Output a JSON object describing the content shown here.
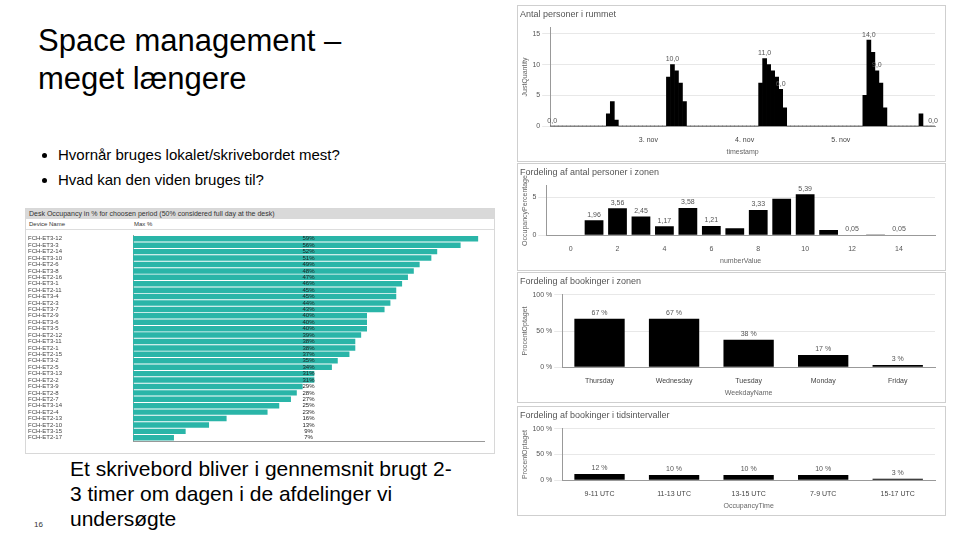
{
  "slide": {
    "title": "Space management – meget længere",
    "bullets": [
      "Hvornår bruges lokalet/skrivebordet mest?",
      "Hvad kan den viden bruges til?"
    ],
    "caption": "Et skrivebord bliver i gennemsnit brugt 2-3 timer om dagen i de afdelinger vi undersøgte",
    "page_number": 16
  },
  "chart_data": [
    {
      "type": "bar",
      "title": "Antal personer i rummet",
      "x_label": "timestamp",
      "y_label": "JustQuantity",
      "categories": [
        null,
        null,
        null,
        null,
        null,
        null,
        null,
        null,
        null,
        null,
        null,
        null,
        null,
        null,
        null,
        null,
        null,
        null,
        null,
        null,
        null,
        null,
        null,
        null,
        "3. nov",
        null,
        null,
        null,
        null,
        null,
        null,
        null,
        null,
        null,
        null,
        null,
        null,
        null,
        null,
        null,
        null,
        null,
        null,
        null,
        null,
        null,
        null,
        null,
        "4. nov",
        null,
        null,
        null,
        null,
        null,
        null,
        null,
        null,
        null,
        null,
        null,
        null,
        null,
        null,
        null,
        null,
        null,
        null,
        null,
        null,
        null,
        null,
        null,
        "5. nov",
        null,
        null,
        null,
        null,
        null,
        null,
        null,
        null,
        null,
        null,
        null,
        null,
        null,
        null,
        null,
        null,
        null,
        null,
        null,
        null,
        null,
        null,
        null
      ],
      "values": [
        0,
        0,
        0,
        0,
        0,
        0,
        0,
        0,
        0,
        0,
        0,
        0,
        0,
        0,
        2,
        4,
        1,
        0,
        0,
        0,
        0,
        0,
        0,
        0,
        0,
        0,
        0,
        0,
        0,
        8,
        10,
        9,
        7,
        4,
        0,
        0,
        0,
        0,
        0,
        0,
        0,
        0,
        0,
        0,
        0,
        0,
        0,
        0,
        0,
        0,
        0,
        0,
        7,
        11,
        10,
        9,
        8,
        6,
        3,
        0,
        0,
        0,
        0,
        0,
        0,
        0,
        0,
        0,
        0,
        0,
        0,
        0,
        0,
        0,
        0,
        0,
        0,
        0,
        5,
        14,
        12,
        9,
        7,
        3,
        0,
        0,
        0,
        0,
        0,
        0,
        0,
        0,
        2,
        0,
        0,
        0
      ],
      "value_labels": [
        "0,0",
        null,
        null,
        null,
        null,
        null,
        null,
        null,
        null,
        null,
        null,
        null,
        null,
        null,
        null,
        null,
        null,
        null,
        null,
        null,
        null,
        null,
        null,
        null,
        null,
        null,
        null,
        null,
        null,
        null,
        "10,0",
        null,
        null,
        null,
        null,
        null,
        null,
        null,
        null,
        null,
        null,
        null,
        null,
        null,
        null,
        null,
        null,
        null,
        null,
        null,
        null,
        null,
        null,
        "11,0",
        null,
        null,
        null,
        "6,0",
        null,
        null,
        null,
        null,
        null,
        null,
        null,
        null,
        null,
        null,
        null,
        null,
        null,
        null,
        null,
        null,
        null,
        null,
        null,
        null,
        null,
        "14,0",
        null,
        "9,0",
        null,
        null,
        null,
        null,
        null,
        null,
        null,
        null,
        null,
        null,
        null,
        null,
        null,
        "0,0"
      ],
      "data_labels": true,
      "color": "#000000",
      "ylim": [
        0,
        16
      ],
      "yticks": [
        0,
        5,
        10,
        15
      ],
      "grid": true
    },
    {
      "type": "bar",
      "title": "Fordeling af antal personer i zonen",
      "x_label": "numberValue",
      "y_label": "OccupancyPercentage",
      "x": [
        1,
        2,
        3,
        4,
        5,
        6,
        7,
        8,
        9,
        10,
        11,
        12,
        13,
        14
      ],
      "values": [
        1.96,
        3.56,
        2.45,
        1.17,
        3.58,
        1.21,
        0.9,
        3.33,
        4.8,
        5.39,
        0.7,
        0.05,
        0.03,
        0.05
      ],
      "value_labels": [
        "1,96",
        "3,56",
        "2,45",
        "1,17",
        "3,58",
        "1,21",
        null,
        "3,33",
        null,
        "5,39",
        null,
        "0,05",
        null,
        "0,05"
      ],
      "data_labels": true,
      "color": "#000000",
      "xlim": [
        0,
        14.5
      ],
      "xticks": [
        0,
        2,
        4,
        6,
        8,
        10,
        12,
        14
      ],
      "ylim": [
        0,
        6.5
      ],
      "yticks": [
        0,
        5
      ],
      "grid": true
    },
    {
      "type": "bar",
      "title": "Fordeling af bookinger i zonen",
      "x_label": "WeekdayName",
      "y_label": "ProcentOptaget",
      "categories": [
        "Thursday",
        "Wednesday",
        "Tuesday",
        "Monday",
        "Friday"
      ],
      "values": [
        67,
        67,
        38,
        17,
        3
      ],
      "value_labels": [
        "67 %",
        "67 %",
        "38 %",
        "17 %",
        "3 %"
      ],
      "data_labels": true,
      "color": "#000000",
      "ylim": [
        0,
        100
      ],
      "yticks": [
        {
          "value": 0,
          "label": "0 %"
        },
        {
          "value": 50,
          "label": "50 %"
        },
        {
          "value": 100,
          "label": "100 %"
        }
      ],
      "grid": true
    },
    {
      "type": "bar",
      "title": "Fordeling af bookinger i tidsintervaller",
      "x_label": "OccupancyTime",
      "y_label": "ProcentOptaget",
      "categories": [
        "9-11 UTC",
        "11-13 UTC",
        "13-15 UTC",
        "7-9 UTC",
        "15-17 UTC"
      ],
      "values": [
        12,
        10,
        10,
        10,
        3
      ],
      "value_labels": [
        "12 %",
        "10 %",
        "10 %",
        "10 %",
        "3 %"
      ],
      "data_labels": true,
      "color": "#000000",
      "ylim": [
        0,
        100
      ],
      "yticks": [
        {
          "value": 0,
          "label": "0 %"
        },
        {
          "value": 50,
          "label": "50 %"
        },
        {
          "value": 100,
          "label": "100 %"
        }
      ],
      "grid": true
    },
    {
      "type": "bar",
      "orientation": "horizontal",
      "title": "Desk Occupancy in % for choosen period (50% considered full day at the desk)",
      "column_headers": [
        "Device Name",
        "Max %"
      ],
      "categories": [
        "FCH-ET3-12",
        "FCH-ET3-3",
        "FCH-ET2-14",
        "FCH-ET3-10",
        "FCH-ET2-6",
        "FCH-ET3-8",
        "FCH-ET2-16",
        "FCH-ET3-1",
        "FCH-ET2-11",
        "FCH-ET3-4",
        "FCH-ET2-3",
        "FCH-ET3-7",
        "FCH-ET2-9",
        "FCH-ET3-6",
        "FCH-ET3-5",
        "FCH-ET2-12",
        "FCH-ET3-11",
        "FCH-ET2-1",
        "FCH-ET2-15",
        "FCH-ET3-2",
        "FCH-ET2-5",
        "FCH-ET3-13",
        "FCH-ET2-2",
        "FCH-ET3-9",
        "FCH-ET2-8",
        "FCH-ET2-7",
        "FCH-ET3-14",
        "FCH-ET2-4",
        "FCH-ET2-13",
        "FCH-ET2-10",
        "FCH-ET3-15",
        "FCH-ET2-17"
      ],
      "values": [
        59,
        56,
        52,
        51,
        49,
        48,
        47,
        46,
        45,
        45,
        44,
        43,
        40,
        40,
        40,
        39,
        38,
        38,
        37,
        35,
        34,
        31,
        31,
        29,
        28,
        27,
        25,
        23,
        16,
        13,
        9,
        7
      ],
      "value_labels": [
        "59%",
        "56%",
        "52%",
        "51%",
        "49%",
        "48%",
        "47%",
        "46%",
        "45%",
        "45%",
        "44%",
        "43%",
        "40%",
        "40%",
        "40%",
        "39%",
        "38%",
        "38%",
        "37%",
        "35%",
        "34%",
        "31%",
        "31%",
        "29%",
        "28%",
        "27%",
        "25%",
        "23%",
        "16%",
        "13%",
        "9%",
        "7%"
      ],
      "data_labels": true,
      "color": "#2ab5a8",
      "xlim": [
        0,
        60
      ],
      "tick_labels": "y",
      "grid": false
    }
  ]
}
